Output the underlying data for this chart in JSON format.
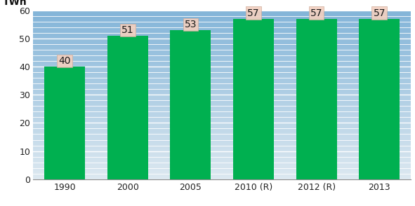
{
  "categories": [
    "1990",
    "2000",
    "2005",
    "2010 (R)",
    "2012 (R)",
    "2013"
  ],
  "values": [
    40,
    51,
    53,
    57,
    57,
    57
  ],
  "bar_color": "#00b050",
  "ylabel": "TWh",
  "ylim": [
    0,
    60
  ],
  "yticks": [
    0,
    10,
    20,
    30,
    40,
    50,
    60
  ],
  "grid_color": "#ffffff",
  "label_bg_color": "#f2d0c0",
  "label_edge_color": "#ccaa99",
  "label_fontsize": 10,
  "ylabel_fontsize": 10,
  "tick_fontsize": 9,
  "bar_width": 0.65,
  "n_hlines": 30,
  "bg_top": "#82b4d8",
  "bg_bottom": "#dce8f0"
}
